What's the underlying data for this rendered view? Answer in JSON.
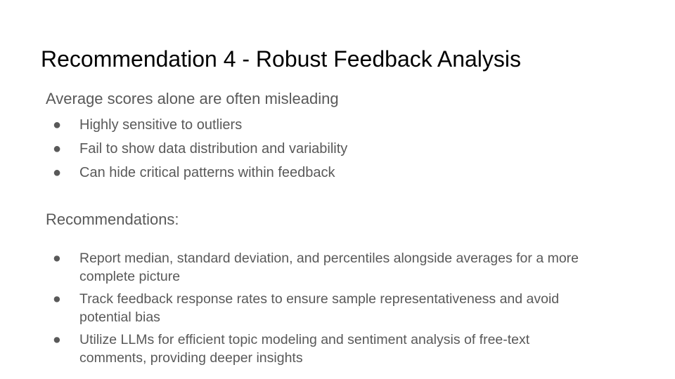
{
  "slide": {
    "title": "Recommendation 4 - Robust Feedback Analysis",
    "intro": "Average scores alone are often misleading",
    "bullet_glyph": "●",
    "issues": [
      "Highly sensitive to outliers",
      "Fail to show data distribution and variability",
      "Can hide critical patterns within feedback"
    ],
    "recommendations_heading": "Recommendations:",
    "recommendations": [
      "Report median, standard deviation, and percentiles alongside averages for a more complete picture",
      "Track feedback response rates to ensure sample representativeness and avoid potential bias",
      "Utilize LLMs for efficient topic modeling and sentiment analysis of free-text comments, providing deeper insights"
    ],
    "colors": {
      "title": "#000000",
      "body": "#595959",
      "background": "#ffffff"
    }
  }
}
